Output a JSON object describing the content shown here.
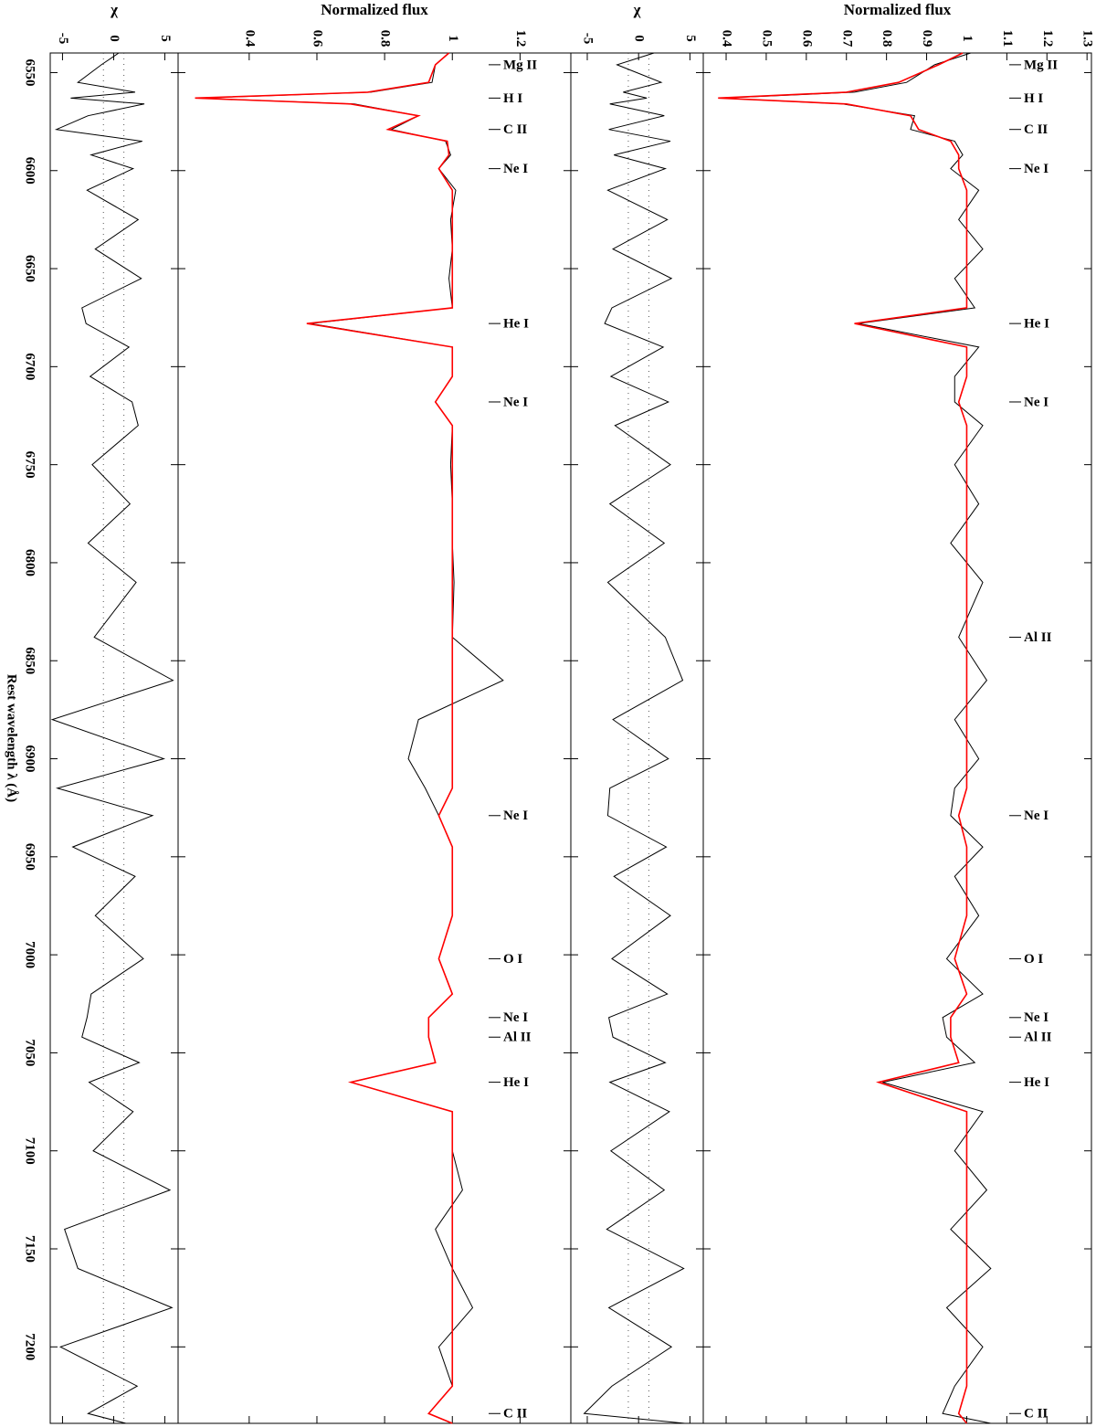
{
  "chart_data": [
    {
      "type": "line",
      "ylabel": "χ",
      "xlabel": "Rest wavelength λ (Å)",
      "xlim": [
        6540,
        7239
      ],
      "xticks": [
        6550,
        6600,
        6650,
        6700,
        6750,
        6800,
        6850,
        6900,
        6950,
        7000,
        7050,
        7100,
        7150,
        7200
      ],
      "ylim": [
        -6.2,
        6.3
      ],
      "yticks": [
        -5,
        0,
        5
      ],
      "ref_lines": [
        -1,
        1
      ],
      "x": [
        6540,
        6546,
        6555,
        6560,
        6563,
        6566,
        6572,
        6579,
        6585,
        6592,
        6599,
        6610,
        6625,
        6640,
        6655,
        6670,
        6678,
        6690,
        6705,
        6718,
        6730,
        6750,
        6770,
        6790,
        6810,
        6838,
        6860,
        6880,
        6900,
        6915,
        6929,
        6945,
        6960,
        6980,
        7002,
        7020,
        7032,
        7042,
        7055,
        7065,
        7080,
        7100,
        7120,
        7140,
        7160,
        7180,
        7200,
        7220,
        7234,
        7239
      ],
      "series": [
        {
          "color": "#000000",
          "values": [
            0.5,
            -1.2,
            -3.5,
            2.1,
            -4.2,
            3.0,
            -2.5,
            -5.6,
            2.8,
            -2.2,
            1.9,
            -2.6,
            2.4,
            -1.8,
            2.7,
            -3.1,
            -2.7,
            1.5,
            -2.3,
            1.8,
            2.4,
            -2.1,
            1.6,
            -2.5,
            2.2,
            -1.9,
            5.8,
            -6,
            4.9,
            -5.5,
            3.8,
            -4,
            2.1,
            -1.8,
            2.9,
            -2.2,
            -2.6,
            -3.1,
            2.5,
            -2.4,
            1.9,
            -2.0,
            5.5,
            -4.8,
            -3.5,
            5.7,
            -5.2,
            2.3,
            -2.5,
            1.2
          ]
        }
      ]
    },
    {
      "type": "line",
      "ylabel": "Normalized flux",
      "xlim": [
        6540,
        7239
      ],
      "ylim": [
        0.19,
        1.35
      ],
      "yticks": [
        0.4,
        0.6,
        0.8,
        1,
        1.2
      ],
      "x": [
        6540,
        6546,
        6555,
        6560,
        6563,
        6566,
        6572,
        6579,
        6585,
        6592,
        6599,
        6610,
        6625,
        6640,
        6655,
        6670,
        6678,
        6690,
        6705,
        6718,
        6730,
        6750,
        6770,
        6790,
        6810,
        6838,
        6860,
        6880,
        6900,
        6915,
        6929,
        6945,
        6960,
        6980,
        7002,
        7020,
        7032,
        7042,
        7055,
        7065,
        7080,
        7100,
        7120,
        7140,
        7160,
        7180,
        7200,
        7220,
        7234,
        7239
      ],
      "series": [
        {
          "color": "#000000",
          "values": [
            0.99,
            0.95,
            0.94,
            0.76,
            0.25,
            0.71,
            0.9,
            0.82,
            0.98,
            0.995,
            0.96,
            1.01,
            0.995,
            1.0,
            0.99,
            1.0,
            0.58,
            1.0,
            1.0,
            0.95,
            1.0,
            0.995,
            1.0,
            1.0,
            1.005,
            1.0,
            1.15,
            0.9,
            0.87,
            0.92,
            0.96,
            1.0,
            1.0,
            1.0,
            0.96,
            1.0,
            0.93,
            0.93,
            0.95,
            0.7,
            1.0,
            1.0,
            1.03,
            0.95,
            1.0,
            1.06,
            0.96,
            1.0,
            0.93,
            1.0
          ]
        },
        {
          "color": "#ff0000",
          "values": [
            0.99,
            0.95,
            0.93,
            0.75,
            0.24,
            0.7,
            0.9,
            0.81,
            0.985,
            0.99,
            0.96,
            1,
            1,
            1,
            1,
            1,
            0.57,
            1,
            1,
            0.95,
            1,
            1,
            1,
            1,
            1,
            1,
            1,
            1,
            1,
            1,
            0.96,
            1,
            1,
            1,
            0.96,
            1,
            0.93,
            0.93,
            0.95,
            0.7,
            1,
            1,
            1,
            1,
            1,
            1,
            1,
            1,
            0.93,
            1
          ]
        }
      ],
      "annotations": [
        {
          "text": "Mg II",
          "x": 6546
        },
        {
          "text": "H I",
          "x": 6563
        },
        {
          "text": "C II",
          "x": 6579
        },
        {
          "text": "Ne I",
          "x": 6599
        },
        {
          "text": "He I",
          "x": 6678
        },
        {
          "text": "Ne I",
          "x": 6718
        },
        {
          "text": "Ne I",
          "x": 6929
        },
        {
          "text": "O I",
          "x": 7002
        },
        {
          "text": "Ne I",
          "x": 7032
        },
        {
          "text": "Al II",
          "x": 7042
        },
        {
          "text": "He I",
          "x": 7065
        },
        {
          "text": "C II",
          "x": 7234
        }
      ]
    },
    {
      "type": "line",
      "ylabel": "χ",
      "xlim": [
        6540,
        7239
      ],
      "ylim": [
        -6.6,
        6.3
      ],
      "yticks": [
        -5,
        0,
        5
      ],
      "ref_lines": [
        -1,
        1
      ],
      "x": [
        6540,
        6546,
        6555,
        6560,
        6563,
        6566,
        6572,
        6579,
        6585,
        6592,
        6599,
        6610,
        6625,
        6640,
        6655,
        6670,
        6678,
        6690,
        6705,
        6718,
        6730,
        6750,
        6770,
        6790,
        6810,
        6838,
        6860,
        6880,
        6900,
        6915,
        6929,
        6945,
        6960,
        6980,
        7002,
        7020,
        7032,
        7042,
        7055,
        7065,
        7080,
        7100,
        7120,
        7140,
        7160,
        7180,
        7200,
        7220,
        7234,
        7239
      ],
      "series": [
        {
          "color": "#000000",
          "values": [
            1.5,
            -2.1,
            2.2,
            -1.5,
            0.8,
            -2.8,
            2.5,
            -2.9,
            3.1,
            -2.4,
            2.6,
            -3.0,
            2.8,
            -2.5,
            3.2,
            -2.6,
            -3.3,
            2.4,
            -2.7,
            2.9,
            -2.3,
            3.1,
            -2.8,
            2.5,
            -3.0,
            2.6,
            4.3,
            -2.5,
            2.9,
            -2.8,
            -3.0,
            2.7,
            -2.4,
            3.1,
            -2.6,
            2.8,
            -2.9,
            -2.5,
            2.6,
            -2.8,
            3.0,
            -2.7,
            2.5,
            -3.1,
            4.4,
            -2.9,
            3.2,
            -2.6,
            -5.3,
            4.5
          ]
        }
      ]
    },
    {
      "type": "line",
      "ylabel": "Normalized flux",
      "xlim": [
        6540,
        7239
      ],
      "ylim": [
        0.343,
        1.311
      ],
      "yticks": [
        0.4,
        0.5,
        0.6,
        0.7,
        0.8,
        0.9,
        1,
        1.1,
        1.2,
        1.3
      ],
      "x": [
        6540,
        6546,
        6555,
        6560,
        6563,
        6566,
        6572,
        6579,
        6585,
        6592,
        6599,
        6610,
        6625,
        6640,
        6655,
        6670,
        6678,
        6690,
        6705,
        6718,
        6730,
        6750,
        6770,
        6790,
        6810,
        6838,
        6860,
        6880,
        6900,
        6915,
        6929,
        6945,
        6960,
        6980,
        7002,
        7020,
        7032,
        7042,
        7055,
        7065,
        7080,
        7100,
        7120,
        7140,
        7160,
        7180,
        7200,
        7220,
        7234,
        7239
      ],
      "series": [
        {
          "color": "#000000",
          "values": [
            1.01,
            0.92,
            0.85,
            0.72,
            0.39,
            0.69,
            0.87,
            0.86,
            0.97,
            0.99,
            0.96,
            1.03,
            0.98,
            1.04,
            0.97,
            1.02,
            0.73,
            1.03,
            0.97,
            0.97,
            1.04,
            0.97,
            1.03,
            0.96,
            1.04,
            0.98,
            1.05,
            0.97,
            1.03,
            0.97,
            0.96,
            1.04,
            0.97,
            1.03,
            0.95,
            1.04,
            0.94,
            0.95,
            1.02,
            0.79,
            1.04,
            0.97,
            1.05,
            0.96,
            1.06,
            0.95,
            1.04,
            0.97,
            0.94,
            1.06
          ]
        },
        {
          "color": "#ff0000",
          "values": [
            0.99,
            0.93,
            0.83,
            0.7,
            0.38,
            0.7,
            0.86,
            0.88,
            0.96,
            0.98,
            0.98,
            1,
            1,
            1,
            1,
            1,
            0.72,
            1,
            1,
            0.98,
            1,
            1,
            1,
            1,
            1,
            1,
            1,
            1,
            1,
            1,
            0.98,
            1,
            1,
            1,
            0.97,
            1,
            0.96,
            0.96,
            0.98,
            0.78,
            1,
            1,
            1,
            1,
            1,
            1,
            1,
            1,
            0.98,
            1
          ]
        }
      ],
      "annotations": [
        {
          "text": "Mg II",
          "x": 6546
        },
        {
          "text": "H I",
          "x": 6563
        },
        {
          "text": "C II",
          "x": 6579
        },
        {
          "text": "Ne I",
          "x": 6599
        },
        {
          "text": "He I",
          "x": 6678
        },
        {
          "text": "Ne I",
          "x": 6718
        },
        {
          "text": "Al II",
          "x": 6838
        },
        {
          "text": "Ne I",
          "x": 6929
        },
        {
          "text": "O I",
          "x": 7002
        },
        {
          "text": "Ne I",
          "x": 7032
        },
        {
          "text": "Al II",
          "x": 7042
        },
        {
          "text": "He I",
          "x": 7065
        },
        {
          "text": "C II",
          "x": 7234
        }
      ]
    }
  ]
}
